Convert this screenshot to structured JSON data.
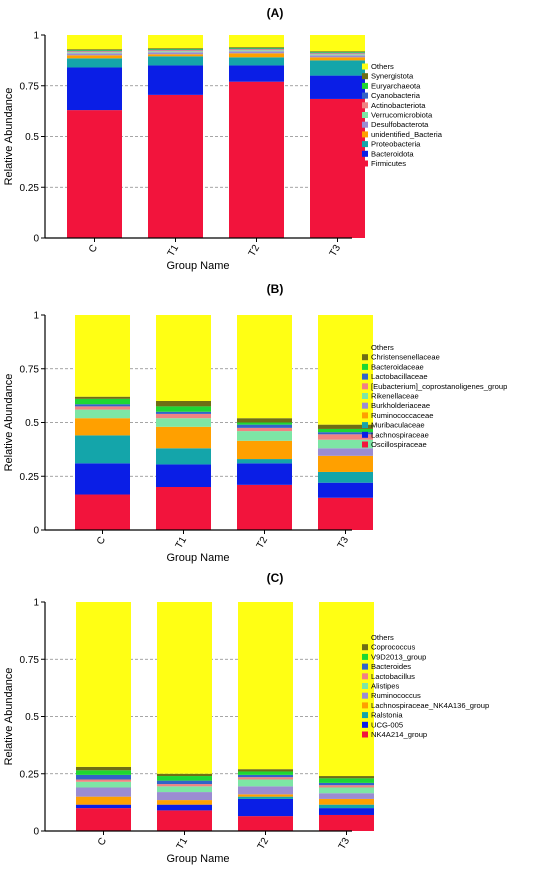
{
  "chart_data": [
    {
      "type": "bar",
      "stacked": true,
      "panel_label": "(A)",
      "xlabel": "Group Name",
      "ylabel": "Relative Abundance",
      "ylim": [
        0,
        1
      ],
      "yticks": [
        "0",
        "0.25",
        "0.5",
        "0.75",
        "1"
      ],
      "grid": "horizontal dashed at 0.25, 0.5, 0.75",
      "legend_position": "right",
      "categories": [
        "C",
        "T1",
        "T2",
        "T3"
      ],
      "series": [
        {
          "name": "Firmicutes",
          "color": "#F2143C",
          "values": [
            0.63,
            0.705,
            0.77,
            0.685
          ]
        },
        {
          "name": "Bacteroidota",
          "color": "#0A1EE6",
          "values": [
            0.21,
            0.145,
            0.08,
            0.115
          ]
        },
        {
          "name": "Proteobacteria",
          "color": "#14A5AA",
          "values": [
            0.045,
            0.045,
            0.04,
            0.075
          ]
        },
        {
          "name": "unidentified_Bacteria",
          "color": "#FFA000",
          "values": [
            0.015,
            0.01,
            0.02,
            0.015
          ]
        },
        {
          "name": "Desulfobacterota",
          "color": "#9B8CD2",
          "values": [
            0.01,
            0.01,
            0.01,
            0.01
          ]
        },
        {
          "name": "Verrucomicrobiota",
          "color": "#7DE6A5",
          "values": [
            0.005,
            0.005,
            0.005,
            0.005
          ]
        },
        {
          "name": "Actinobacteriota",
          "color": "#F08282",
          "values": [
            0.005,
            0.005,
            0.005,
            0.005
          ]
        },
        {
          "name": "Cyanobacteria",
          "color": "#3264C8",
          "values": [
            0.003,
            0.003,
            0.003,
            0.003
          ]
        },
        {
          "name": "Euryarchaeota",
          "color": "#1ED732",
          "values": [
            0.003,
            0.003,
            0.003,
            0.003
          ]
        },
        {
          "name": "Synergistota",
          "color": "#6E6E14",
          "values": [
            0.004,
            0.004,
            0.004,
            0.004
          ]
        },
        {
          "name": "Others",
          "color": "#FFFF14",
          "values": [
            0.07,
            0.065,
            0.06,
            0.08
          ]
        }
      ]
    },
    {
      "type": "bar",
      "stacked": true,
      "panel_label": "(B)",
      "xlabel": "Group Name",
      "ylabel": "Relative Abundance",
      "ylim": [
        0,
        1
      ],
      "yticks": [
        "0",
        "0.25",
        "0.5",
        "0.75",
        "1"
      ],
      "grid": "horizontal dashed at 0.25, 0.5, 0.75",
      "legend_position": "right",
      "categories": [
        "C",
        "T1",
        "T2",
        "T3"
      ],
      "series": [
        {
          "name": "Oscillospiraceae",
          "color": "#F2143C",
          "values": [
            0.165,
            0.2,
            0.21,
            0.15
          ]
        },
        {
          "name": "Lachnospiraceae",
          "color": "#0A1EE6",
          "values": [
            0.145,
            0.105,
            0.1,
            0.07
          ]
        },
        {
          "name": "Muribaculaceae",
          "color": "#14A5AA",
          "values": [
            0.13,
            0.075,
            0.02,
            0.05
          ]
        },
        {
          "name": "Ruminococcaceae",
          "color": "#FFA000",
          "values": [
            0.08,
            0.1,
            0.085,
            0.075
          ]
        },
        {
          "name": "Burkholderiaceae",
          "color": "#9B8CD2",
          "values": [
            0.0,
            0.0,
            0.0,
            0.035
          ]
        },
        {
          "name": "Rikenellaceae",
          "color": "#7DE6A5",
          "values": [
            0.04,
            0.04,
            0.045,
            0.04
          ]
        },
        {
          "name": "[Eubacterium]_coprostanoligenes_group",
          "color": "#F08282",
          "values": [
            0.015,
            0.02,
            0.015,
            0.025
          ]
        },
        {
          "name": "Lactobacillaceae",
          "color": "#3264C8",
          "values": [
            0.01,
            0.01,
            0.015,
            0.01
          ]
        },
        {
          "name": "Bacteroidaceae",
          "color": "#1ED732",
          "values": [
            0.025,
            0.025,
            0.01,
            0.015
          ]
        },
        {
          "name": "Christensenellaceae",
          "color": "#6E6E14",
          "values": [
            0.01,
            0.025,
            0.02,
            0.02
          ]
        },
        {
          "name": "Others",
          "color": "#FFFF14",
          "values": [
            0.38,
            0.4,
            0.48,
            0.51
          ]
        }
      ]
    },
    {
      "type": "bar",
      "stacked": true,
      "panel_label": "(C)",
      "xlabel": "Group Name",
      "ylabel": "Relative Abundance",
      "ylim": [
        0,
        1
      ],
      "yticks": [
        "0",
        "0.25",
        "0.5",
        "0.75",
        "1"
      ],
      "grid": "horizontal dashed at 0.25, 0.5, 0.75",
      "legend_position": "right",
      "categories": [
        "C",
        "T1",
        "T2",
        "T3"
      ],
      "series": [
        {
          "name": "NK4A214_group",
          "color": "#F2143C",
          "values": [
            0.1,
            0.09,
            0.065,
            0.07
          ]
        },
        {
          "name": "UCG-005",
          "color": "#0A1EE6",
          "values": [
            0.015,
            0.025,
            0.075,
            0.03
          ]
        },
        {
          "name": "Ralstonia",
          "color": "#14A5AA",
          "values": [
            0.0,
            0.0,
            0.01,
            0.015
          ]
        },
        {
          "name": "Lachnospiraceae_NK4A136_group",
          "color": "#FFA000",
          "values": [
            0.035,
            0.02,
            0.01,
            0.025
          ]
        },
        {
          "name": "Ruminococcus",
          "color": "#9B8CD2",
          "values": [
            0.04,
            0.035,
            0.035,
            0.025
          ]
        },
        {
          "name": "Alistipes",
          "color": "#7DE6A5",
          "values": [
            0.025,
            0.025,
            0.03,
            0.025
          ]
        },
        {
          "name": "Lactobacillus",
          "color": "#F08282",
          "values": [
            0.01,
            0.01,
            0.01,
            0.01
          ]
        },
        {
          "name": "Bacteroides",
          "color": "#3264C8",
          "values": [
            0.02,
            0.015,
            0.01,
            0.01
          ]
        },
        {
          "name": "V9D2013_group",
          "color": "#1ED732",
          "values": [
            0.02,
            0.02,
            0.015,
            0.02
          ]
        },
        {
          "name": "Coprococcus",
          "color": "#6E6E14",
          "values": [
            0.015,
            0.01,
            0.01,
            0.01
          ]
        },
        {
          "name": "Others",
          "color": "#FFFF14",
          "values": [
            0.72,
            0.75,
            0.73,
            0.76
          ]
        }
      ]
    }
  ]
}
